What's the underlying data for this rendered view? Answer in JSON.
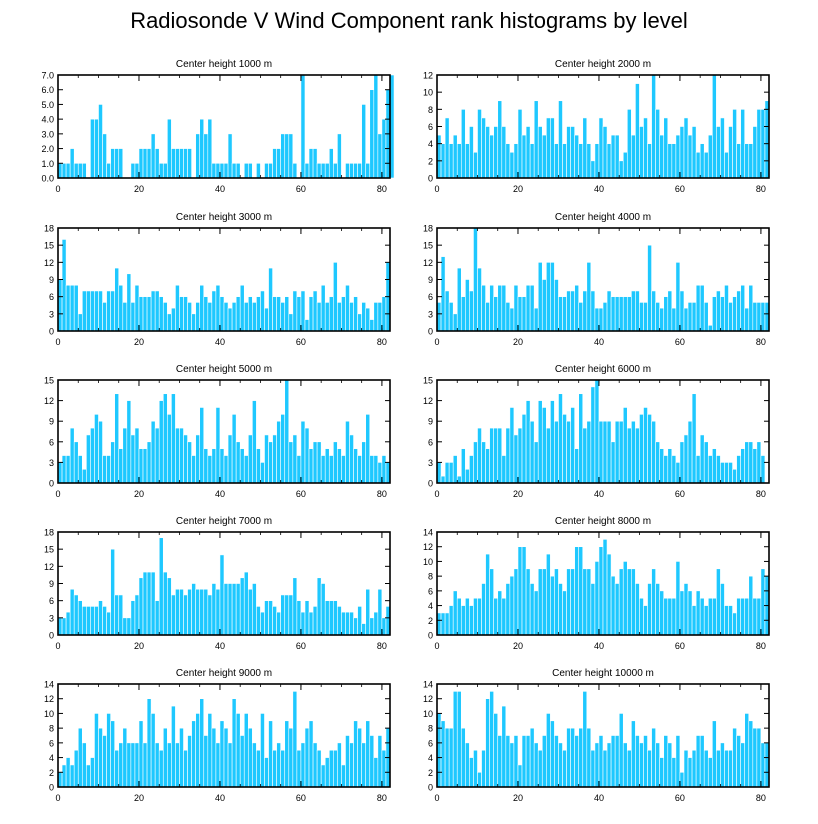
{
  "title": "Radiosonde V Wind Component rank histograms by level",
  "colors": {
    "bar": "#1ec8ff",
    "bar_edge": "#ffffff",
    "axis": "#000000"
  },
  "chart_data": [
    {
      "type": "bar",
      "title": "Center height 1000 m",
      "xlim": [
        0,
        82
      ],
      "ylim": [
        0,
        7
      ],
      "yticks": [
        0,
        1,
        2,
        3,
        4,
        5,
        6,
        7
      ],
      "ytick_labels": [
        "0.0",
        "1.0",
        "2.0",
        "3.0",
        "4.0",
        "5.0",
        "6.0",
        "7.0"
      ],
      "xticks": [
        0,
        20,
        40,
        60,
        80
      ],
      "xtick_labels": [
        "0",
        "20",
        "40",
        "60",
        "80"
      ],
      "values": [
        1,
        1,
        1,
        2,
        1,
        1,
        1,
        0,
        4,
        4,
        5,
        3,
        1,
        2,
        2,
        2,
        0,
        0,
        1,
        1,
        2,
        2,
        2,
        3,
        2,
        1,
        1,
        4,
        2,
        2,
        2,
        2,
        2,
        0,
        3,
        4,
        3,
        4,
        1,
        1,
        1,
        1,
        3,
        1,
        1,
        0,
        1,
        1,
        0,
        1,
        0,
        1,
        1,
        2,
        2,
        3,
        3,
        3,
        1,
        0,
        7,
        1,
        2,
        2,
        1,
        1,
        1,
        2,
        1,
        3,
        0,
        1,
        1,
        1,
        1,
        5,
        1,
        6,
        7,
        3,
        4,
        6,
        7
      ]
    },
    {
      "type": "bar",
      "title": "Center height 2000 m",
      "xlim": [
        0,
        82
      ],
      "ylim": [
        0,
        12
      ],
      "yticks": [
        0,
        2,
        4,
        6,
        8,
        10,
        12
      ],
      "ytick_labels": [
        "0",
        "2",
        "4",
        "6",
        "8",
        "10",
        "12"
      ],
      "xticks": [
        0,
        20,
        40,
        60,
        80
      ],
      "xtick_labels": [
        "0",
        "20",
        "40",
        "60",
        "80"
      ],
      "values": [
        5,
        4,
        7,
        4,
        5,
        4,
        8,
        4,
        6,
        3,
        8,
        7,
        6,
        5,
        6,
        9,
        6,
        4,
        3,
        4,
        8,
        5,
        6,
        4,
        9,
        6,
        5,
        7,
        7,
        4,
        9,
        4,
        6,
        6,
        5,
        4,
        7,
        4,
        2,
        4,
        7,
        6,
        4,
        5,
        5,
        2,
        3,
        8,
        5,
        11,
        6,
        7,
        4,
        12,
        8,
        5,
        7,
        4,
        4,
        5,
        6,
        7,
        5,
        6,
        3,
        4,
        3,
        5,
        12,
        6,
        7,
        3,
        6,
        8,
        4,
        8,
        4,
        4,
        6,
        8,
        8,
        9
      ]
    },
    {
      "type": "bar",
      "title": "Center height 3000 m",
      "xlim": [
        0,
        82
      ],
      "ylim": [
        0,
        18
      ],
      "yticks": [
        0,
        3,
        6,
        9,
        12,
        15,
        18
      ],
      "ytick_labels": [
        "0",
        "3",
        "6",
        "9",
        "12",
        "15",
        "18"
      ],
      "xticks": [
        0,
        20,
        40,
        60,
        80
      ],
      "xtick_labels": [
        "0",
        "20",
        "40",
        "60",
        "80"
      ],
      "values": [
        9,
        16,
        8,
        8,
        8,
        3,
        7,
        7,
        7,
        7,
        7,
        5,
        7,
        7,
        11,
        8,
        5,
        10,
        5,
        8,
        6,
        6,
        6,
        7,
        7,
        6,
        5,
        3,
        4,
        8,
        6,
        6,
        5,
        3,
        5,
        8,
        6,
        5,
        7,
        8,
        6,
        5,
        4,
        5,
        6,
        8,
        5,
        6,
        5,
        6,
        7,
        4,
        11,
        6,
        6,
        5,
        6,
        3,
        7,
        6,
        7,
        2,
        6,
        7,
        5,
        8,
        5,
        6,
        12,
        5,
        6,
        8,
        5,
        6,
        3,
        5,
        4,
        2,
        5,
        5,
        6,
        12
      ]
    },
    {
      "type": "bar",
      "title": "Center height 4000 m",
      "xlim": [
        0,
        82
      ],
      "ylim": [
        0,
        18
      ],
      "yticks": [
        0,
        3,
        6,
        9,
        12,
        15,
        18
      ],
      "ytick_labels": [
        "0",
        "3",
        "6",
        "9",
        "12",
        "15",
        "18"
      ],
      "xticks": [
        0,
        20,
        40,
        60,
        80
      ],
      "xtick_labels": [
        "0",
        "20",
        "40",
        "60",
        "80"
      ],
      "values": [
        5,
        13,
        7,
        5,
        3,
        11,
        6,
        9,
        7,
        18,
        11,
        8,
        5,
        8,
        6,
        8,
        8,
        5,
        4,
        8,
        6,
        6,
        8,
        8,
        4,
        12,
        9,
        12,
        12,
        9,
        6,
        6,
        7,
        7,
        8,
        5,
        7,
        12,
        7,
        4,
        4,
        5,
        7,
        6,
        6,
        6,
        6,
        6,
        7,
        7,
        5,
        5,
        15,
        7,
        5,
        4,
        6,
        7,
        4,
        12,
        7,
        4,
        5,
        5,
        8,
        8,
        5,
        1,
        6,
        7,
        6,
        8,
        5,
        6,
        7,
        8,
        4,
        8,
        5,
        5,
        5,
        5
      ]
    },
    {
      "type": "bar",
      "title": "Center height 5000 m",
      "xlim": [
        0,
        82
      ],
      "ylim": [
        0,
        15
      ],
      "yticks": [
        0,
        3,
        6,
        9,
        12,
        15
      ],
      "ytick_labels": [
        "0",
        "3",
        "6",
        "9",
        "12",
        "15"
      ],
      "xticks": [
        0,
        20,
        40,
        60,
        80
      ],
      "xtick_labels": [
        "0",
        "20",
        "40",
        "60",
        "80"
      ],
      "values": [
        3,
        4,
        4,
        8,
        6,
        4,
        2,
        7,
        8,
        10,
        9,
        4,
        4,
        6,
        13,
        5,
        8,
        12,
        7,
        8,
        5,
        5,
        6,
        9,
        8,
        12,
        13,
        10,
        13,
        8,
        8,
        7,
        6,
        4,
        7,
        11,
        5,
        4,
        5,
        11,
        5,
        4,
        7,
        10,
        6,
        5,
        4,
        7,
        12,
        5,
        3,
        7,
        6,
        7,
        9,
        10,
        15,
        6,
        7,
        4,
        9,
        8,
        5,
        6,
        6,
        4,
        5,
        4,
        6,
        5,
        4,
        9,
        7,
        5,
        4,
        6,
        10,
        4,
        4,
        3,
        4,
        3
      ]
    },
    {
      "type": "bar",
      "title": "Center height 6000 m",
      "xlim": [
        0,
        82
      ],
      "ylim": [
        0,
        15
      ],
      "yticks": [
        0,
        3,
        6,
        9,
        12,
        15
      ],
      "ytick_labels": [
        "0",
        "3",
        "6",
        "9",
        "12",
        "15"
      ],
      "xticks": [
        0,
        20,
        40,
        60,
        80
      ],
      "xtick_labels": [
        "0",
        "20",
        "40",
        "60",
        "80"
      ],
      "values": [
        3,
        1,
        3,
        3,
        4,
        1,
        5,
        2,
        4,
        6,
        8,
        6,
        5,
        8,
        8,
        8,
        4,
        8,
        11,
        7,
        8,
        10,
        12,
        9,
        6,
        12,
        11,
        8,
        12,
        9,
        13,
        10,
        9,
        11,
        5,
        13,
        8,
        9,
        14,
        15,
        9,
        9,
        9,
        6,
        9,
        9,
        11,
        8,
        9,
        8,
        10,
        11,
        10,
        9,
        6,
        5,
        4,
        5,
        4,
        3,
        6,
        7,
        9,
        13,
        4,
        7,
        6,
        4,
        5,
        4,
        3,
        3,
        3,
        2,
        4,
        5,
        6,
        6,
        5,
        6,
        4
      ]
    },
    {
      "type": "bar",
      "title": "Center height 7000 m",
      "xlim": [
        0,
        82
      ],
      "ylim": [
        0,
        18
      ],
      "yticks": [
        0,
        3,
        6,
        9,
        12,
        15,
        18
      ],
      "ytick_labels": [
        "0",
        "3",
        "6",
        "9",
        "12",
        "15",
        "18"
      ],
      "xticks": [
        0,
        20,
        40,
        60,
        80
      ],
      "xtick_labels": [
        "0",
        "20",
        "40",
        "60",
        "80"
      ],
      "values": [
        3,
        3,
        4,
        8,
        7,
        6,
        5,
        5,
        5,
        5,
        6,
        5,
        4,
        15,
        7,
        7,
        3,
        3,
        6,
        7,
        10,
        11,
        11,
        11,
        6,
        17,
        11,
        10,
        7,
        8,
        8,
        7,
        8,
        9,
        8,
        8,
        8,
        7,
        9,
        8,
        14,
        9,
        9,
        9,
        9,
        10,
        11,
        8,
        9,
        5,
        4,
        6,
        6,
        5,
        4,
        7,
        7,
        7,
        10,
        6,
        4,
        6,
        4,
        5,
        10,
        9,
        6,
        6,
        6,
        5,
        4,
        4,
        4,
        3,
        5,
        2,
        8,
        3,
        4,
        8,
        3,
        5
      ]
    },
    {
      "type": "bar",
      "title": "Center height 8000 m",
      "xlim": [
        0,
        82
      ],
      "ylim": [
        0,
        14
      ],
      "yticks": [
        0,
        2,
        4,
        6,
        8,
        10,
        12,
        14
      ],
      "ytick_labels": [
        "0",
        "2",
        "4",
        "6",
        "8",
        "10",
        "12",
        "14"
      ],
      "xticks": [
        0,
        20,
        40,
        60,
        80
      ],
      "xtick_labels": [
        "0",
        "20",
        "40",
        "60",
        "80"
      ],
      "values": [
        3,
        3,
        3,
        4,
        6,
        5,
        4,
        5,
        4,
        5,
        5,
        7,
        11,
        9,
        5,
        6,
        5,
        7,
        8,
        9,
        12,
        12,
        9,
        7,
        6,
        9,
        9,
        11,
        8,
        9,
        7,
        6,
        9,
        9,
        12,
        12,
        9,
        9,
        7,
        10,
        12,
        13,
        11,
        8,
        7,
        9,
        10,
        9,
        9,
        7,
        5,
        4,
        7,
        9,
        7,
        6,
        5,
        5,
        5,
        10,
        6,
        7,
        6,
        4,
        6,
        5,
        4,
        5,
        5,
        9,
        7,
        4,
        4,
        3,
        5,
        5,
        5,
        8,
        5,
        5,
        9,
        8
      ]
    },
    {
      "type": "bar",
      "title": "Center height 9000 m",
      "xlim": [
        0,
        82
      ],
      "ylim": [
        0,
        14
      ],
      "yticks": [
        0,
        2,
        4,
        6,
        8,
        10,
        12,
        14
      ],
      "ytick_labels": [
        "0",
        "2",
        "4",
        "6",
        "8",
        "10",
        "12",
        "14"
      ],
      "xticks": [
        0,
        20,
        40,
        60,
        80
      ],
      "xtick_labels": [
        "0",
        "20",
        "40",
        "60",
        "80"
      ],
      "values": [
        2,
        3,
        4,
        3,
        5,
        8,
        6,
        3,
        4,
        10,
        8,
        7,
        10,
        9,
        5,
        6,
        8,
        6,
        6,
        6,
        9,
        6,
        12,
        10,
        6,
        5,
        8,
        6,
        11,
        6,
        8,
        5,
        7,
        9,
        10,
        12,
        7,
        10,
        8,
        6,
        9,
        8,
        6,
        12,
        10,
        7,
        10,
        8,
        6,
        5,
        10,
        4,
        9,
        5,
        6,
        5,
        9,
        8,
        13,
        5,
        6,
        8,
        9,
        6,
        5,
        3,
        4,
        5,
        5,
        6,
        3,
        7,
        6,
        9,
        8,
        6,
        9,
        7,
        4,
        7,
        5,
        8
      ]
    },
    {
      "type": "bar",
      "title": "Center height 10000 m",
      "xlim": [
        0,
        82
      ],
      "ylim": [
        0,
        14
      ],
      "yticks": [
        0,
        2,
        4,
        6,
        8,
        10,
        12,
        14
      ],
      "ytick_labels": [
        "0",
        "2",
        "4",
        "6",
        "8",
        "10",
        "12",
        "14"
      ],
      "xticks": [
        0,
        20,
        40,
        60,
        80
      ],
      "xtick_labels": [
        "0",
        "20",
        "40",
        "60",
        "80"
      ],
      "values": [
        10,
        9,
        8,
        8,
        13,
        13,
        8,
        6,
        4,
        5,
        2,
        5,
        12,
        13,
        10,
        7,
        11,
        7,
        6,
        7,
        3,
        7,
        7,
        8,
        6,
        5,
        7,
        10,
        9,
        7,
        6,
        5,
        8,
        8,
        7,
        8,
        13,
        8,
        5,
        6,
        7,
        5,
        6,
        7,
        7,
        10,
        6,
        5,
        9,
        7,
        6,
        7,
        5,
        8,
        6,
        4,
        7,
        6,
        4,
        7,
        2,
        5,
        4,
        5,
        7,
        7,
        5,
        4,
        9,
        5,
        6,
        5,
        5,
        8,
        7,
        6,
        10,
        9,
        8,
        8,
        6,
        6
      ]
    }
  ]
}
